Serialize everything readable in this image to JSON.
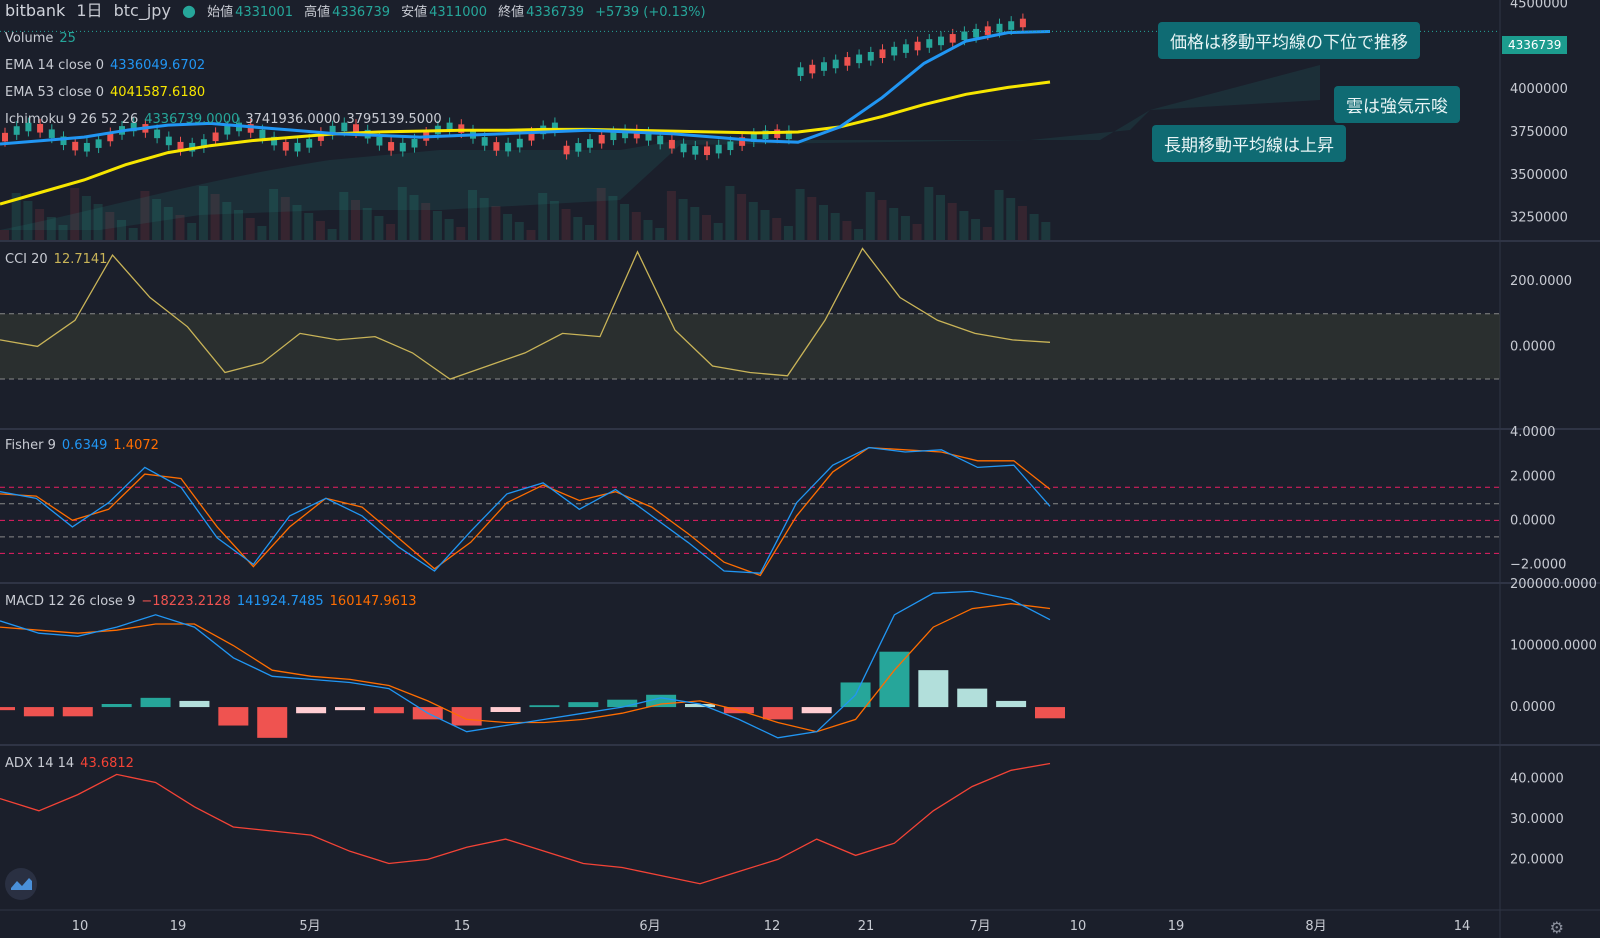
{
  "header": {
    "exchange": "bitbank",
    "interval": "1日",
    "symbol": "btc_jpy",
    "open_label": "始値",
    "open": "4331001",
    "high_label": "高値",
    "high": "4336739",
    "low_label": "安値",
    "low": "4311000",
    "close_label": "終値",
    "close": "4336739",
    "change": "+5739 (+0.13%)"
  },
  "indicators": {
    "volume": {
      "name": "Volume",
      "value": "25"
    },
    "ema14": {
      "name": "EMA 14 close 0",
      "value": "4336049.6702"
    },
    "ema53": {
      "name": "EMA 53 close 0",
      "value": "4041587.6180"
    },
    "ichimoku": {
      "name": "Ichimoku 9 26 52 26",
      "v1": "4336739.0000",
      "v2": "3741936.0000",
      "v3": "3795139.5000"
    },
    "cci": {
      "name": "CCI 20",
      "value": "12.7141"
    },
    "fisher": {
      "name": "Fisher 9",
      "v1": "0.6349",
      "v2": "1.4072"
    },
    "macd": {
      "name": "MACD 12 26 close 9",
      "v1": "−18223.2128",
      "v2": "141924.7485",
      "v3": "160147.9613"
    },
    "adx": {
      "name": "ADX 14 14",
      "value": "43.6812"
    }
  },
  "callouts": {
    "c1": "価格は移動平均線の下位で推移",
    "c2": "雲は強気示唆",
    "c3": "長期移動平均線は上昇"
  },
  "price_tag": "4336739",
  "colors": {
    "bg": "#1b1f2b",
    "up": "#26a69a",
    "down": "#ef5350",
    "ema14": "#2196f3",
    "ema53": "#f7e600",
    "cci": "#c9b458",
    "fisher1": "#2196f3",
    "fisher2": "#ff6d00",
    "adx": "#f44336"
  },
  "chart_data": {
    "type": "line",
    "x_ticks": [
      "10",
      "19",
      "5月",
      "15",
      "6月",
      "12",
      "21",
      "7月",
      "10",
      "19",
      "8月",
      "14"
    ],
    "price_axis": {
      "ticks": [
        "4500000",
        "4250000",
        "4000000",
        "3750000",
        "3500000",
        "3250000"
      ],
      "ylim": [
        3120000,
        4520000
      ]
    },
    "ema14": [
      3680000,
      3700000,
      3720000,
      3760000,
      3790000,
      3800000,
      3780000,
      3760000,
      3740000,
      3730000,
      3720000,
      3730000,
      3740000,
      3750000,
      3760000,
      3750000,
      3740000,
      3720000,
      3700000,
      3690000,
      3780000,
      3950000,
      4150000,
      4280000,
      4330000,
      4336049
    ],
    "ema53": [
      3330000,
      3400000,
      3470000,
      3560000,
      3630000,
      3670000,
      3700000,
      3720000,
      3740000,
      3750000,
      3755000,
      3760000,
      3760000,
      3765000,
      3765000,
      3760000,
      3755000,
      3750000,
      3745000,
      3750000,
      3780000,
      3840000,
      3910000,
      3970000,
      4010000,
      4041587
    ],
    "cci_axis": {
      "ticks": [
        "200.0000",
        "0.0000"
      ],
      "ylim": [
        -250,
        320
      ]
    },
    "cci": [
      20,
      0,
      80,
      280,
      150,
      60,
      -80,
      -50,
      40,
      20,
      30,
      -20,
      -100,
      -60,
      -20,
      40,
      30,
      290,
      50,
      -60,
      -80,
      -90,
      80,
      300,
      150,
      80,
      40,
      20,
      12.7
    ],
    "fisher_axis": {
      "ticks": [
        "4.0000",
        "2.0000",
        "0.0000",
        "−2.0000"
      ],
      "ylim": [
        -2.8,
        4.1
      ]
    },
    "fisher": [
      1.3,
      1.0,
      -0.3,
      0.8,
      2.4,
      1.5,
      -0.8,
      -2.0,
      0.2,
      1.0,
      0.2,
      -1.2,
      -2.3,
      -0.5,
      1.2,
      1.7,
      0.5,
      1.4,
      0.2,
      -1.0,
      -2.3,
      -2.4,
      0.8,
      2.5,
      3.3,
      3.1,
      3.2,
      2.4,
      2.5,
      0.6349
    ],
    "fisher_signal": [
      1.2,
      1.1,
      0.0,
      0.5,
      2.1,
      1.9,
      -0.3,
      -2.1,
      -0.3,
      1.0,
      0.6,
      -0.8,
      -2.2,
      -1.0,
      0.8,
      1.6,
      0.9,
      1.3,
      0.6,
      -0.6,
      -1.9,
      -2.5,
      0.2,
      2.2,
      3.3,
      3.2,
      3.1,
      2.7,
      2.7,
      1.4072
    ],
    "macd_axis": {
      "ticks": [
        "200000.0000",
        "100000.0000",
        "0.0000"
      ],
      "ylim": [
        -60000,
        200000
      ]
    },
    "macd": [
      140000,
      120000,
      115000,
      130000,
      150000,
      130000,
      80000,
      50000,
      45000,
      40000,
      30000,
      -10000,
      -40000,
      -30000,
      -20000,
      -10000,
      0,
      15000,
      5000,
      -20000,
      -50000,
      -40000,
      20000,
      150000,
      185000,
      188000,
      175000,
      141924
    ],
    "macd_signal": [
      130000,
      125000,
      120000,
      125000,
      135000,
      135000,
      100000,
      60000,
      50000,
      45000,
      35000,
      10000,
      -20000,
      -25000,
      -25000,
      -20000,
      -10000,
      5000,
      10000,
      -5000,
      -25000,
      -40000,
      -20000,
      60000,
      130000,
      160000,
      168000,
      160147
    ],
    "macd_hist": [
      -5000,
      -15000,
      -15000,
      5000,
      15000,
      10000,
      -30000,
      -50000,
      -10000,
      -5000,
      -10000,
      -20000,
      -30000,
      -8000,
      3000,
      8000,
      12000,
      20000,
      5000,
      -10000,
      -20000,
      -10000,
      40000,
      90000,
      60000,
      30000,
      10000,
      -18223
    ],
    "adx_axis": {
      "ticks": [
        "40.0000",
        "30.0000",
        "20.0000"
      ],
      "ylim": [
        8,
        48
      ]
    },
    "adx": [
      35,
      32,
      36,
      41,
      39,
      33,
      28,
      27,
      26,
      22,
      19,
      20,
      23,
      25,
      22,
      19,
      18,
      16,
      14,
      17,
      20,
      25,
      21,
      24,
      32,
      38,
      42,
      43.6812
    ]
  }
}
